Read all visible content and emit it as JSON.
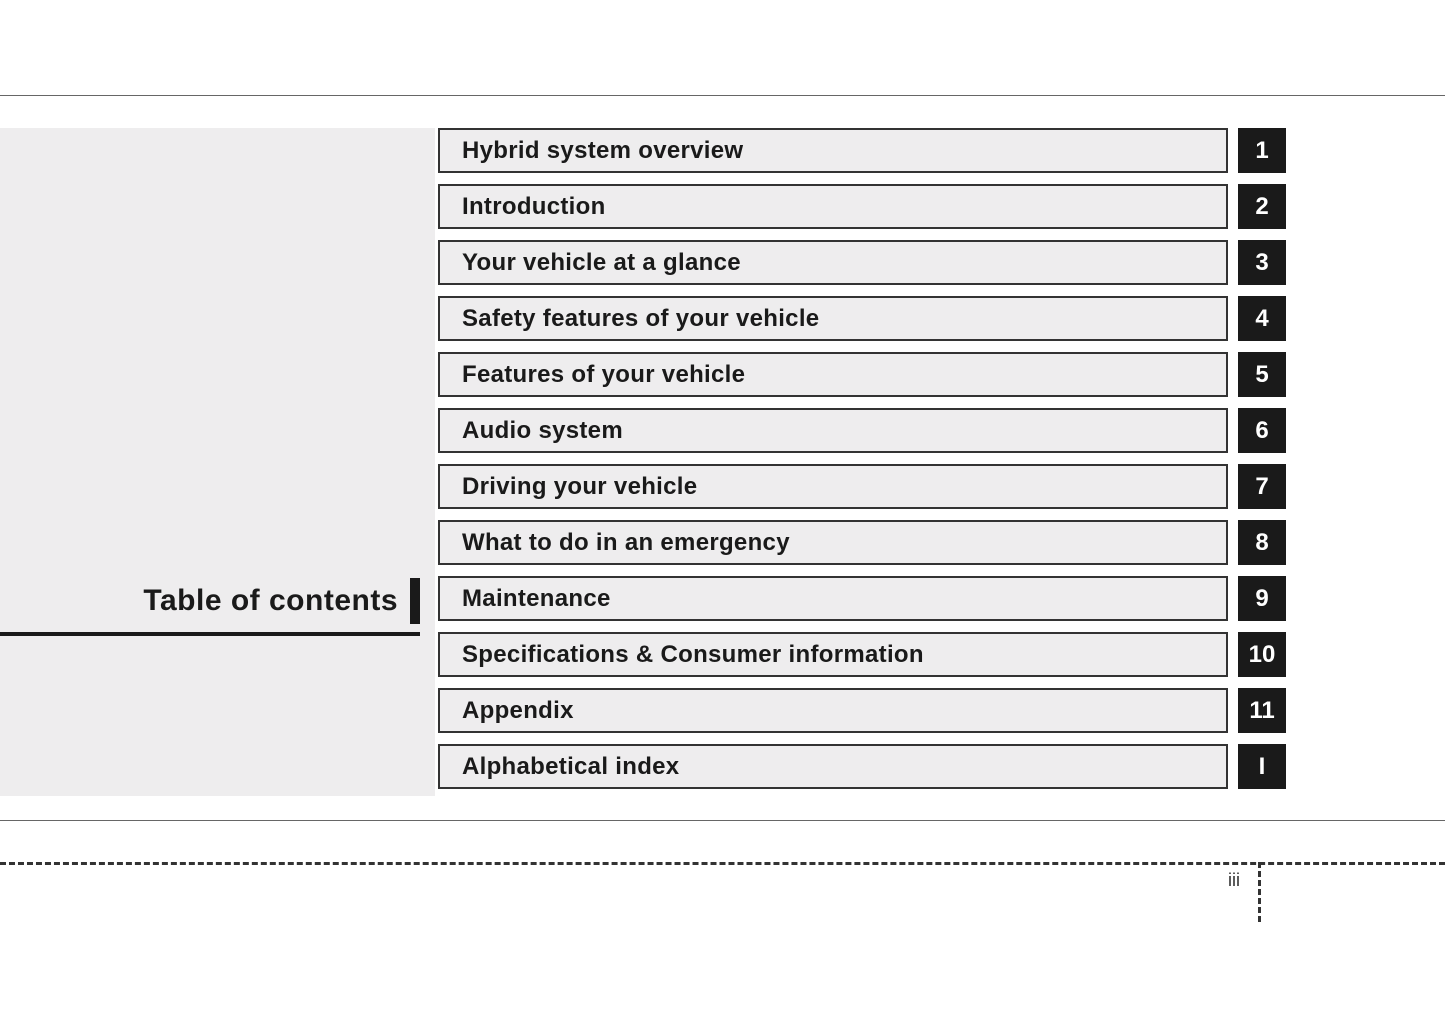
{
  "sidebar": {
    "title": "Table of contents"
  },
  "chapters": [
    {
      "title": "Hybrid system overview",
      "number": "1"
    },
    {
      "title": "Introduction",
      "number": "2"
    },
    {
      "title": "Your vehicle at a glance",
      "number": "3"
    },
    {
      "title": "Safety features of your vehicle",
      "number": "4"
    },
    {
      "title": "Features of your vehicle",
      "number": "5"
    },
    {
      "title": "Audio system",
      "number": "6"
    },
    {
      "title": "Driving your vehicle",
      "number": "7"
    },
    {
      "title": "What to do in an emergency",
      "number": "8"
    },
    {
      "title": "Maintenance",
      "number": "9"
    },
    {
      "title": "Specifications & Consumer information",
      "number": "10"
    },
    {
      "title": "Appendix",
      "number": "11"
    },
    {
      "title": "Alphabetical index",
      "number": "I"
    }
  ],
  "page_number": "iii",
  "colors": {
    "background": "#ffffff",
    "panel": "#eeedee",
    "text": "#1a1a1a",
    "tab_bg": "#1a1a1a",
    "tab_text": "#ffffff",
    "border": "#333333"
  }
}
